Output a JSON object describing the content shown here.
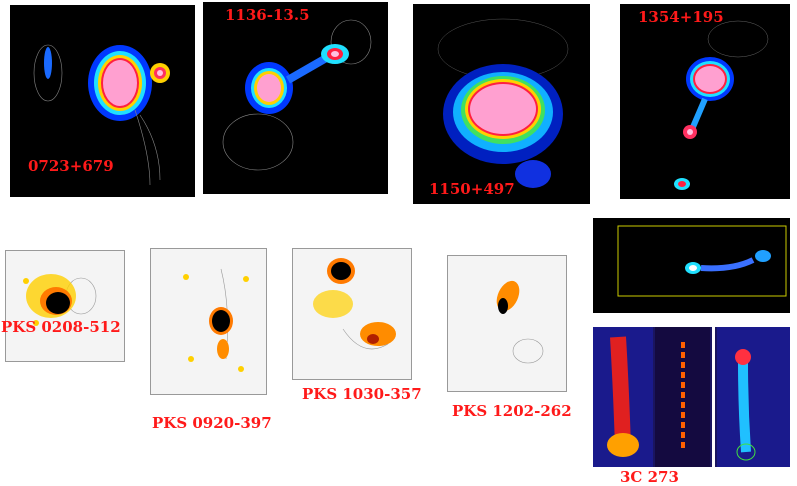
{
  "labels": {
    "p1": "0723+679",
    "p2": "1136-13.5",
    "p3": "1150+497",
    "p4": "1354+195",
    "p5": "PKS 0208-512",
    "p6": "PKS 0920-397",
    "p7": "PKS 1030-357",
    "p8": "PKS 1202-262",
    "p9": "3C 273"
  },
  "colors": {
    "label": "#ff1a1a",
    "panel_dark": "#000000",
    "panel_light": "#f4f4f4"
  }
}
